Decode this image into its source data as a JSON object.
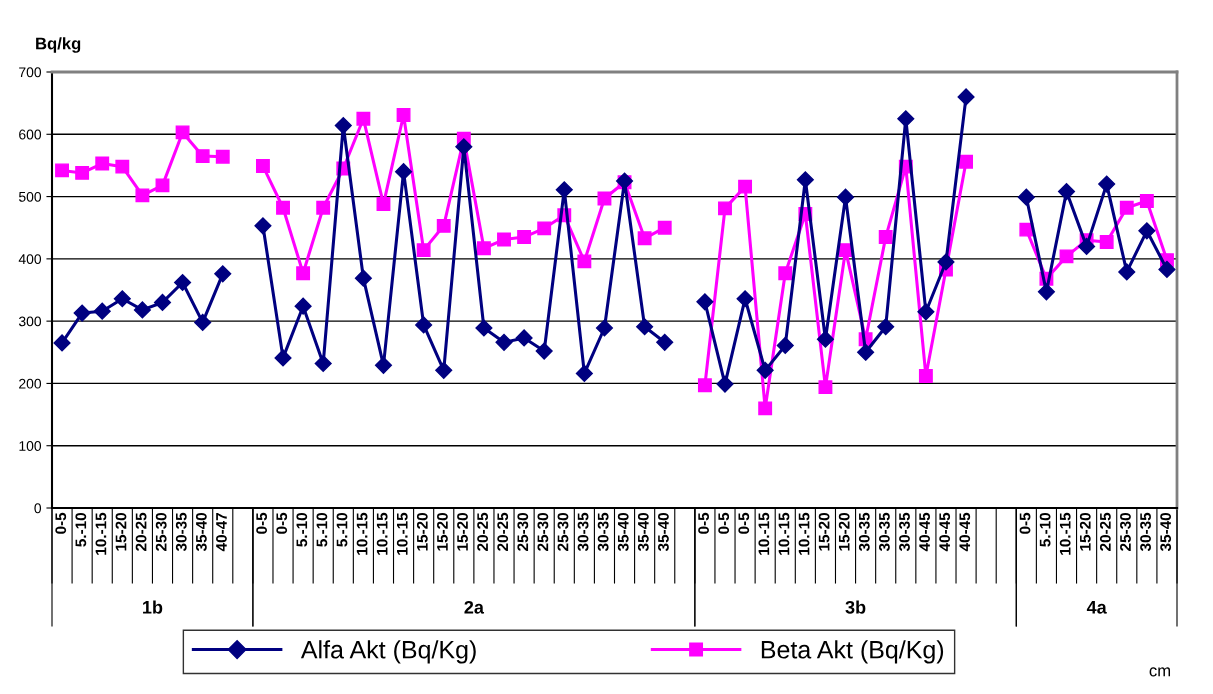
{
  "chart_data": {
    "type": "line",
    "ylabel": "Bq/kg",
    "categories": [
      "0-5",
      "5.-10",
      "10.-15",
      "15-20",
      "20-25",
      "25-30",
      "30-35",
      "35-40",
      "40-47",
      null,
      "0-5",
      "0-5",
      "5.-10",
      "5.-10",
      "5.-10",
      "10.-15",
      "10.-15",
      "10.-15",
      "15-20",
      "15-20",
      "15-20",
      "20-25",
      "20-25",
      "25-30",
      "25-30",
      "25-30",
      "30-35",
      "30-35",
      "35-40",
      "35-40",
      "35-40",
      null,
      "0-5",
      "0-5",
      "0-5",
      "10.-15",
      "10.-15",
      "10.-15",
      "15-20",
      "15-20",
      "30-35",
      "30-35",
      "30-35",
      "40-45",
      "40-45",
      "40-45",
      null,
      null,
      "0-5",
      "5.-10",
      "10.-15",
      "15-20",
      "20-25",
      "25-30",
      "30-35",
      "35-40"
    ],
    "series": [
      {
        "name": "Alfa Akt (Bq/Kg)",
        "color": "#000080",
        "marker": "diamond",
        "values": [
          265,
          313,
          316,
          336,
          318,
          330,
          362,
          298,
          376,
          null,
          453,
          241,
          324,
          232,
          614,
          369,
          229,
          540,
          294,
          221,
          580,
          289,
          266,
          273,
          252,
          511,
          216,
          289,
          525,
          291,
          266,
          null,
          331,
          199,
          336,
          221,
          261,
          527,
          271,
          499,
          250,
          291,
          625,
          315,
          395,
          660,
          null,
          null,
          499,
          347,
          508,
          420,
          520,
          379,
          445,
          383
        ]
      },
      {
        "name": "Beta Akt (Bq/Kg)",
        "color": "#ff00ff",
        "marker": "square",
        "values": [
          542,
          538,
          553,
          548,
          502,
          518,
          603,
          565,
          564,
          null,
          549,
          482,
          377,
          482,
          545,
          625,
          488,
          631,
          414,
          453,
          593,
          417,
          431,
          435,
          449,
          470,
          396,
          497,
          523,
          433,
          450,
          null,
          197,
          481,
          516,
          160,
          377,
          472,
          194,
          414,
          271,
          435,
          548,
          212,
          383,
          556,
          null,
          null,
          447,
          368,
          404,
          430,
          427,
          482,
          493,
          398
        ]
      }
    ],
    "ylim": [
      0,
      700
    ],
    "yticks": [
      0,
      100,
      200,
      300,
      400,
      500,
      600,
      700
    ],
    "grid": "y",
    "legend": "bottom",
    "line_style": "solid",
    "annotations": [
      "1b",
      "2a",
      "3b",
      "4a",
      "cm"
    ]
  }
}
